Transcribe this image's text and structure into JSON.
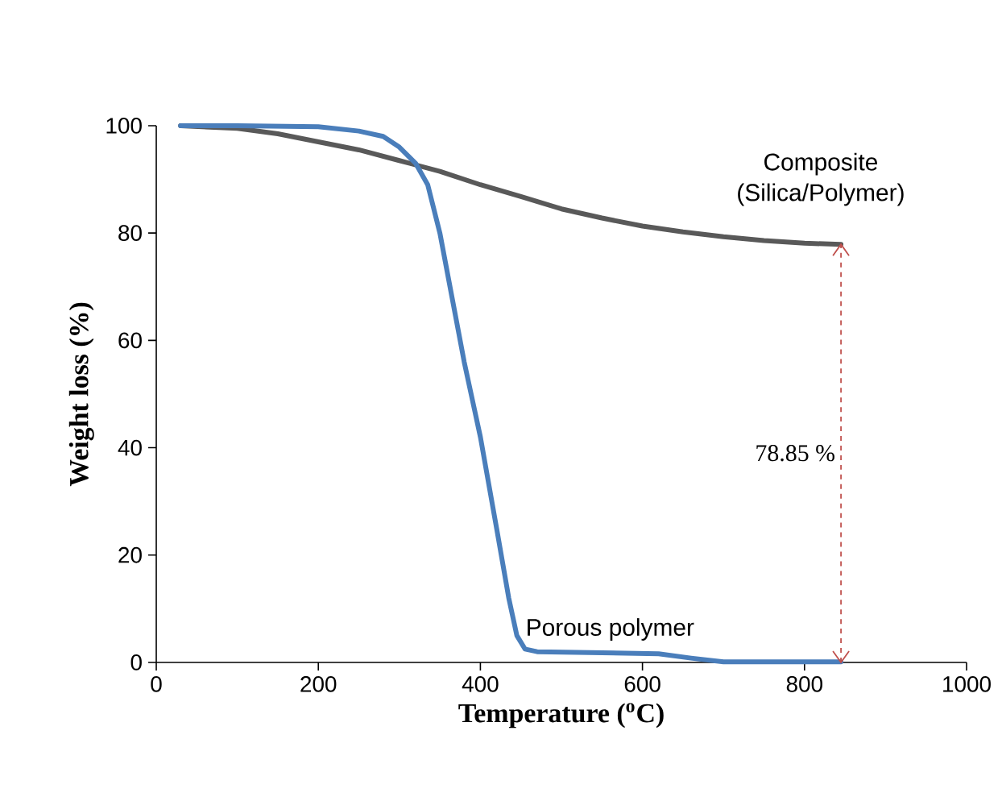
{
  "chart_data": {
    "type": "line",
    "xlabel": "Temperature ($^{o}$C)",
    "ylabel": "Weight loss (%)",
    "xlim": [
      0,
      1000
    ],
    "xticks": [
      0,
      200,
      400,
      600,
      800,
      1000
    ],
    "ylim": [
      0,
      100
    ],
    "yticks": [
      0,
      20,
      40,
      60,
      80,
      100
    ],
    "grid": false,
    "marker": "none",
    "line_style": "solid",
    "series": [
      {
        "color": "#595959",
        "x": [
          30,
          100,
          150,
          200,
          250,
          300,
          350,
          400,
          450,
          500,
          550,
          600,
          650,
          700,
          750,
          800,
          845
        ],
        "values": [
          100,
          99.5,
          98.5,
          97,
          95.5,
          93.5,
          91.5,
          89,
          86.8,
          84.5,
          82.8,
          81.3,
          80.2,
          79.3,
          78.6,
          78.1,
          77.9
        ]
      },
      {
        "color": "#4a7ebb",
        "x": [
          30,
          100,
          200,
          250,
          280,
          300,
          320,
          335,
          350,
          365,
          380,
          400,
          420,
          435,
          445,
          455,
          470,
          550,
          620,
          660,
          700,
          845
        ],
        "values": [
          100,
          100,
          99.8,
          99,
          98,
          96,
          93,
          89,
          80,
          68,
          56,
          42,
          25,
          12,
          5,
          2.5,
          2,
          1.8,
          1.6,
          0.8,
          0.1,
          0.1
        ]
      },
      {
        "type": "line",
        "color": "#c0504d",
        "line_style": "dashed",
        "x": [
          845,
          845
        ],
        "values": [
          0,
          77.9
        ]
      }
    ],
    "annotations": [
      "Composite (Silica/Polymer)",
      "Porous polymer",
      {
        "text": "78.85 %",
        "x": 845,
        "y": 39
      }
    ]
  }
}
